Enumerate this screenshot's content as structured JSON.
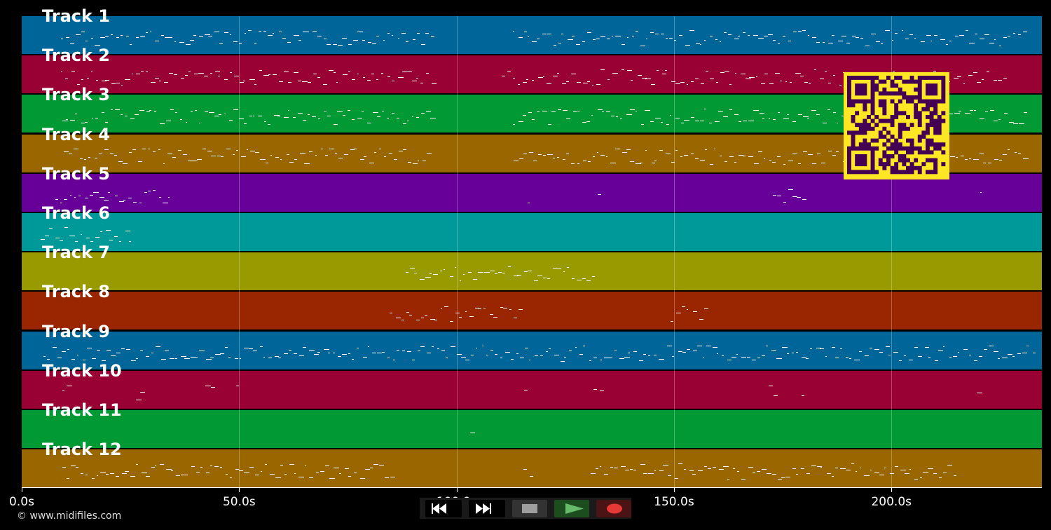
{
  "tracks": [
    {
      "label": "Track 1",
      "color": "#006699"
    },
    {
      "label": "Track 2",
      "color": "#990033"
    },
    {
      "label": "Track 3",
      "color": "#009933"
    },
    {
      "label": "Track 4",
      "color": "#996600"
    },
    {
      "label": "Track 5",
      "color": "#660099"
    },
    {
      "label": "Track 6",
      "color": "#009999"
    },
    {
      "label": "Track 7",
      "color": "#999900"
    },
    {
      "label": "Track 8",
      "color": "#992600"
    },
    {
      "label": "Track 9",
      "color": "#006699"
    },
    {
      "label": "Track 10",
      "color": "#990033"
    },
    {
      "label": "Track 11",
      "color": "#009933"
    },
    {
      "label": "Track 12",
      "color": "#996600"
    }
  ],
  "timeline": {
    "max_seconds": 234.6,
    "ticks": [
      {
        "value": 0,
        "label": "0.0s"
      },
      {
        "value": 50,
        "label": "50.0s"
      },
      {
        "value": 100,
        "label": "100.0s"
      },
      {
        "value": 150,
        "label": "150.0s"
      },
      {
        "value": 200,
        "label": "200.0s"
      }
    ]
  },
  "footer": {
    "credit": "© www.midifiles.com"
  },
  "transport": {
    "rewind_icon": "rewind-icon",
    "fast_forward_icon": "fast-forward-icon",
    "stop_icon": "stop-icon",
    "play_icon": "play-icon",
    "record_icon": "record-icon",
    "play_color": "#2e7d32",
    "record_color": "#e53935"
  },
  "qr": {
    "fg": "#440154",
    "bg": "#fde725"
  }
}
